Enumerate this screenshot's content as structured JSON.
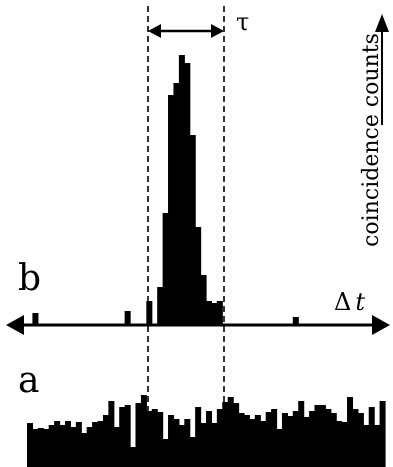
{
  "chart_data": [
    {
      "panel": "b",
      "type": "bar",
      "xlabel": "Δ t",
      "ylabel": "coincidence counts",
      "annotation": "τ",
      "units": "relative (no numeric axis shown)",
      "values": [
        0,
        12,
        0,
        0,
        0,
        0,
        0,
        0,
        0,
        0,
        0,
        0,
        0,
        0,
        0,
        0,
        0,
        0,
        14,
        0,
        0,
        0,
        24,
        0,
        38,
        112,
        230,
        242,
        270,
        262,
        190,
        98,
        50,
        24,
        22,
        24,
        0,
        0,
        0,
        0,
        0,
        0,
        0,
        0,
        0,
        0,
        0,
        0,
        0,
        8,
        0,
        0,
        0,
        0,
        0,
        0,
        0,
        0,
        0,
        0,
        0,
        0,
        0,
        0,
        0,
        0
      ]
    },
    {
      "panel": "a",
      "type": "bar",
      "units": "relative (no numeric axis shown)",
      "values": [
        44,
        38,
        39,
        38,
        42,
        46,
        42,
        46,
        40,
        45,
        34,
        40,
        45,
        46,
        52,
        66,
        40,
        60,
        62,
        20,
        64,
        72,
        56,
        58,
        55,
        28,
        52,
        48,
        42,
        48,
        30,
        60,
        44,
        56,
        44,
        58,
        65,
        70,
        64,
        54,
        52,
        48,
        52,
        46,
        55,
        58,
        38,
        54,
        51,
        56,
        66,
        50,
        56,
        62,
        62,
        58,
        54,
        46,
        45,
        70,
        58,
        54,
        42,
        60,
        42,
        66
      ]
    }
  ],
  "labels": {
    "panel_b": "b",
    "panel_a": "a",
    "tau": "τ",
    "delta_t": "Δ",
    "delta_t_var": "t",
    "y_axis": "coincidence counts"
  }
}
